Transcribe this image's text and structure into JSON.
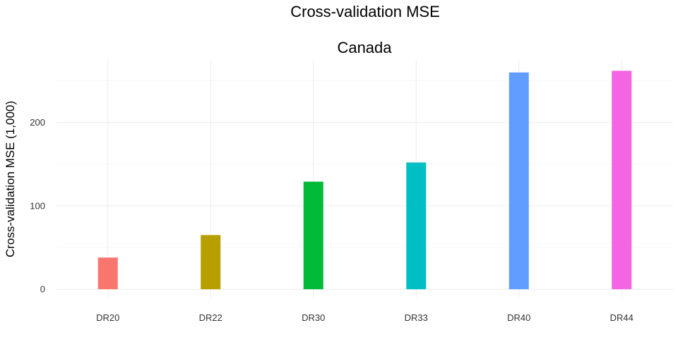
{
  "chart_data": {
    "type": "bar",
    "title": "Cross-validation MSE",
    "subtitle": "Canada",
    "xlabel": "",
    "ylabel": "Cross-validation MSE (1,000)",
    "categories": [
      "DR20",
      "DR22",
      "DR30",
      "DR33",
      "DR40",
      "DR44"
    ],
    "values": [
      38,
      65,
      129,
      152,
      260,
      262
    ],
    "colors": [
      "#F8766D",
      "#B79F00",
      "#00BA38",
      "#00BFC4",
      "#619CFF",
      "#F564E3"
    ],
    "yticks": [
      0,
      100,
      200
    ],
    "ylim": [
      -10,
      275
    ],
    "grid": true,
    "legend": "none"
  }
}
